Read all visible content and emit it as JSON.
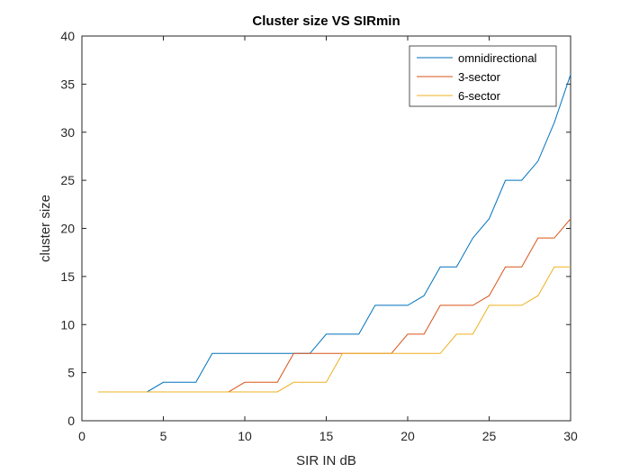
{
  "chart_data": {
    "type": "line",
    "title": "Cluster size VS SIRmin",
    "xlabel": "SIR IN dB",
    "ylabel": "cluster size",
    "xlim": [
      0,
      30
    ],
    "ylim": [
      0,
      40
    ],
    "xticks": [
      0,
      5,
      10,
      15,
      20,
      25,
      30
    ],
    "yticks": [
      0,
      5,
      10,
      15,
      20,
      25,
      30,
      35,
      40
    ],
    "grid": false,
    "legend_position": "top-right",
    "x": [
      1,
      2,
      3,
      4,
      5,
      6,
      7,
      8,
      9,
      10,
      11,
      12,
      13,
      14,
      15,
      16,
      17,
      18,
      19,
      20,
      21,
      22,
      23,
      24,
      25,
      26,
      27,
      28,
      29,
      30
    ],
    "series": [
      {
        "name": "omnidirectional",
        "color": "#0072BD",
        "values": [
          3,
          3,
          3,
          3,
          4,
          4,
          4,
          7,
          7,
          7,
          7,
          7,
          7,
          7,
          9,
          9,
          9,
          12,
          12,
          12,
          13,
          16,
          16,
          19,
          21,
          25,
          25,
          27,
          31,
          36
        ]
      },
      {
        "name": "3-sector",
        "color": "#D95319",
        "values": [
          3,
          3,
          3,
          3,
          3,
          3,
          3,
          3,
          3,
          4,
          4,
          4,
          7,
          7,
          7,
          7,
          7,
          7,
          7,
          9,
          9,
          12,
          12,
          12,
          13,
          16,
          16,
          19,
          19,
          21
        ]
      },
      {
        "name": "6-sector",
        "color": "#EDB120",
        "values": [
          3,
          3,
          3,
          3,
          3,
          3,
          3,
          3,
          3,
          3,
          3,
          3,
          4,
          4,
          4,
          7,
          7,
          7,
          7,
          7,
          7,
          7,
          9,
          9,
          12,
          12,
          12,
          13,
          16,
          16
        ]
      }
    ]
  }
}
